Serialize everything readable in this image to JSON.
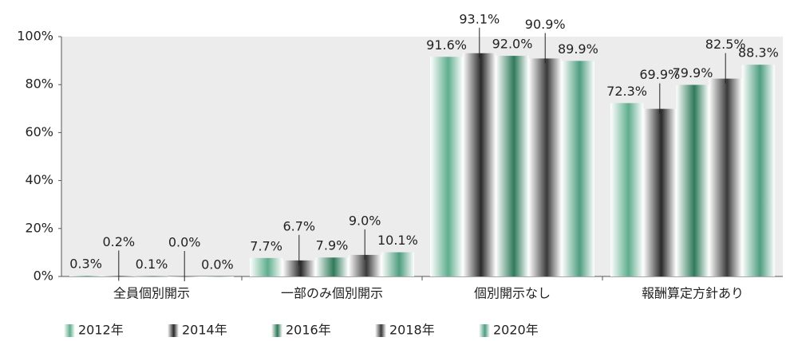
{
  "chart_data": {
    "type": "bar",
    "categories": [
      "全員個別開示",
      "一部のみ個別開示",
      "個別開示なし",
      "報酬算定方針あり"
    ],
    "series": [
      {
        "name": "2012年",
        "color": "#5fae8e",
        "values": [
          0.3,
          7.7,
          91.6,
          72.3
        ],
        "value_labels": [
          "0.3%",
          "7.7%",
          "91.6%",
          "72.3%"
        ]
      },
      {
        "name": "2014年",
        "color": "#2a2a2a",
        "values": [
          0.2,
          6.7,
          93.1,
          69.9
        ],
        "value_labels": [
          "0.2%",
          "6.7%",
          "93.1%",
          "69.9%"
        ]
      },
      {
        "name": "2016年",
        "color": "#2f7a5a",
        "values": [
          0.1,
          7.9,
          92.0,
          79.9
        ],
        "value_labels": [
          "0.1%",
          "7.9%",
          "92.0%",
          "79.9%"
        ]
      },
      {
        "name": "2018年",
        "color": "#3a3a3a",
        "values": [
          0.0,
          9.0,
          90.9,
          82.5
        ],
        "value_labels": [
          "0.0%",
          "9.0%",
          "90.9%",
          "82.5%"
        ]
      },
      {
        "name": "2020年",
        "color": "#4f9e80",
        "values": [
          0.0,
          10.1,
          89.9,
          88.3
        ],
        "value_labels": [
          "0.0%",
          "10.1%",
          "89.9%",
          "88.3%"
        ]
      }
    ],
    "ylim": [
      0,
      100
    ],
    "yticks": [
      {
        "value": 0,
        "label": "0%"
      },
      {
        "value": 20,
        "label": "20%"
      },
      {
        "value": 40,
        "label": "40%"
      },
      {
        "value": 60,
        "label": "60%"
      },
      {
        "value": 80,
        "label": "80%"
      },
      {
        "value": 100,
        "label": "100%"
      }
    ],
    "grid": false,
    "legend": "bottom"
  }
}
